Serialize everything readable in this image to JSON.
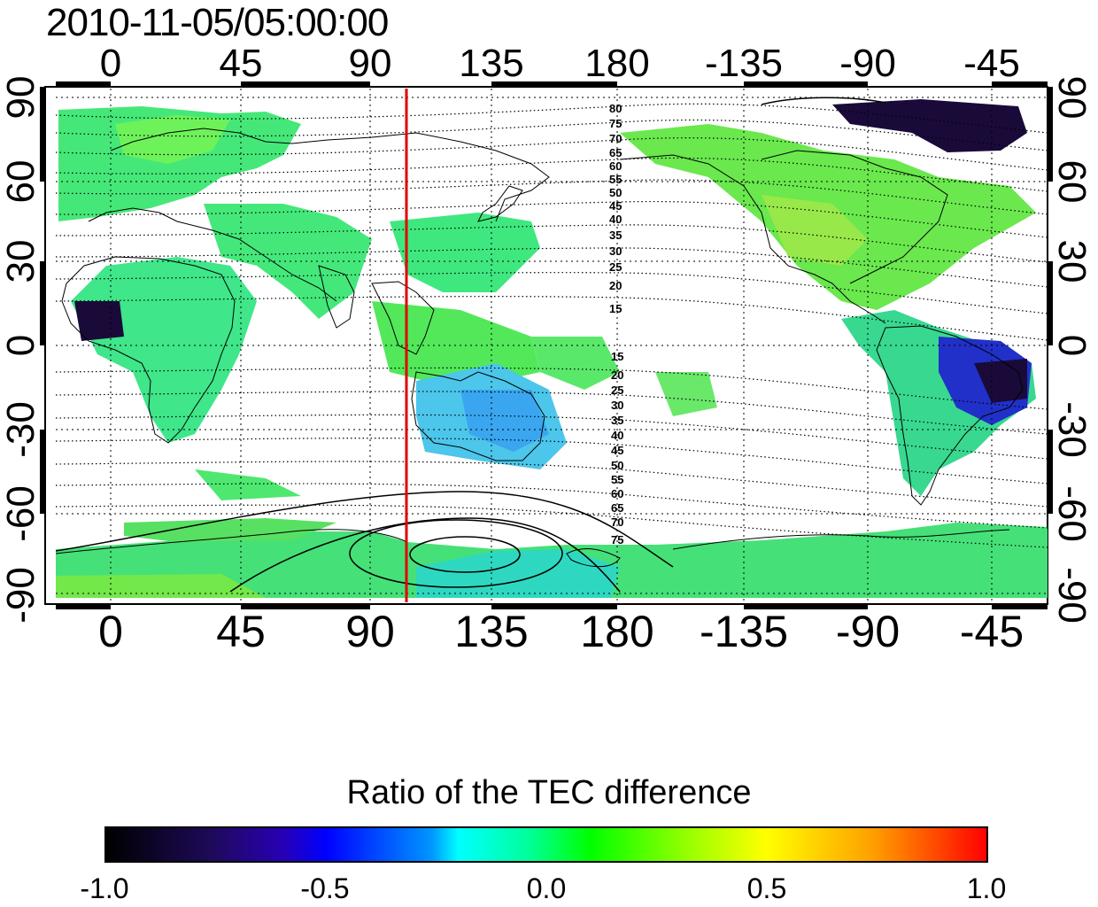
{
  "timestamp": "2010-11-05/05:00:00",
  "map": {
    "top_lon_ticks": [
      "0",
      "45",
      "90",
      "135",
      "180",
      "-135",
      "-90",
      "-45"
    ],
    "bottom_lon_ticks": [
      "0",
      "45",
      "90",
      "135",
      "180",
      "-135",
      "-90",
      "-45"
    ],
    "left_lat_ticks": [
      "90",
      "60",
      "30",
      "0",
      "-30",
      "-60",
      "-90"
    ],
    "right_lat_ticks": [
      "90",
      "60",
      "30",
      "0",
      "-30",
      "-60",
      "-90"
    ],
    "north_contour_labels": [
      "80",
      "75",
      "70",
      "65",
      "60",
      "55",
      "50",
      "45",
      "40",
      "35",
      "30",
      "25",
      "20",
      "15"
    ],
    "south_contour_labels": [
      "15",
      "20",
      "25",
      "30",
      "35",
      "40",
      "45",
      "50",
      "55",
      "60",
      "65",
      "70",
      "75"
    ],
    "marker_line_color": "#e00000",
    "marker_longitude": 104
  },
  "colorbar": {
    "title": "Ratio of the TEC difference",
    "ticks": [
      "-1.0",
      "-0.5",
      "0.0",
      "0.5",
      "1.0"
    ]
  }
}
